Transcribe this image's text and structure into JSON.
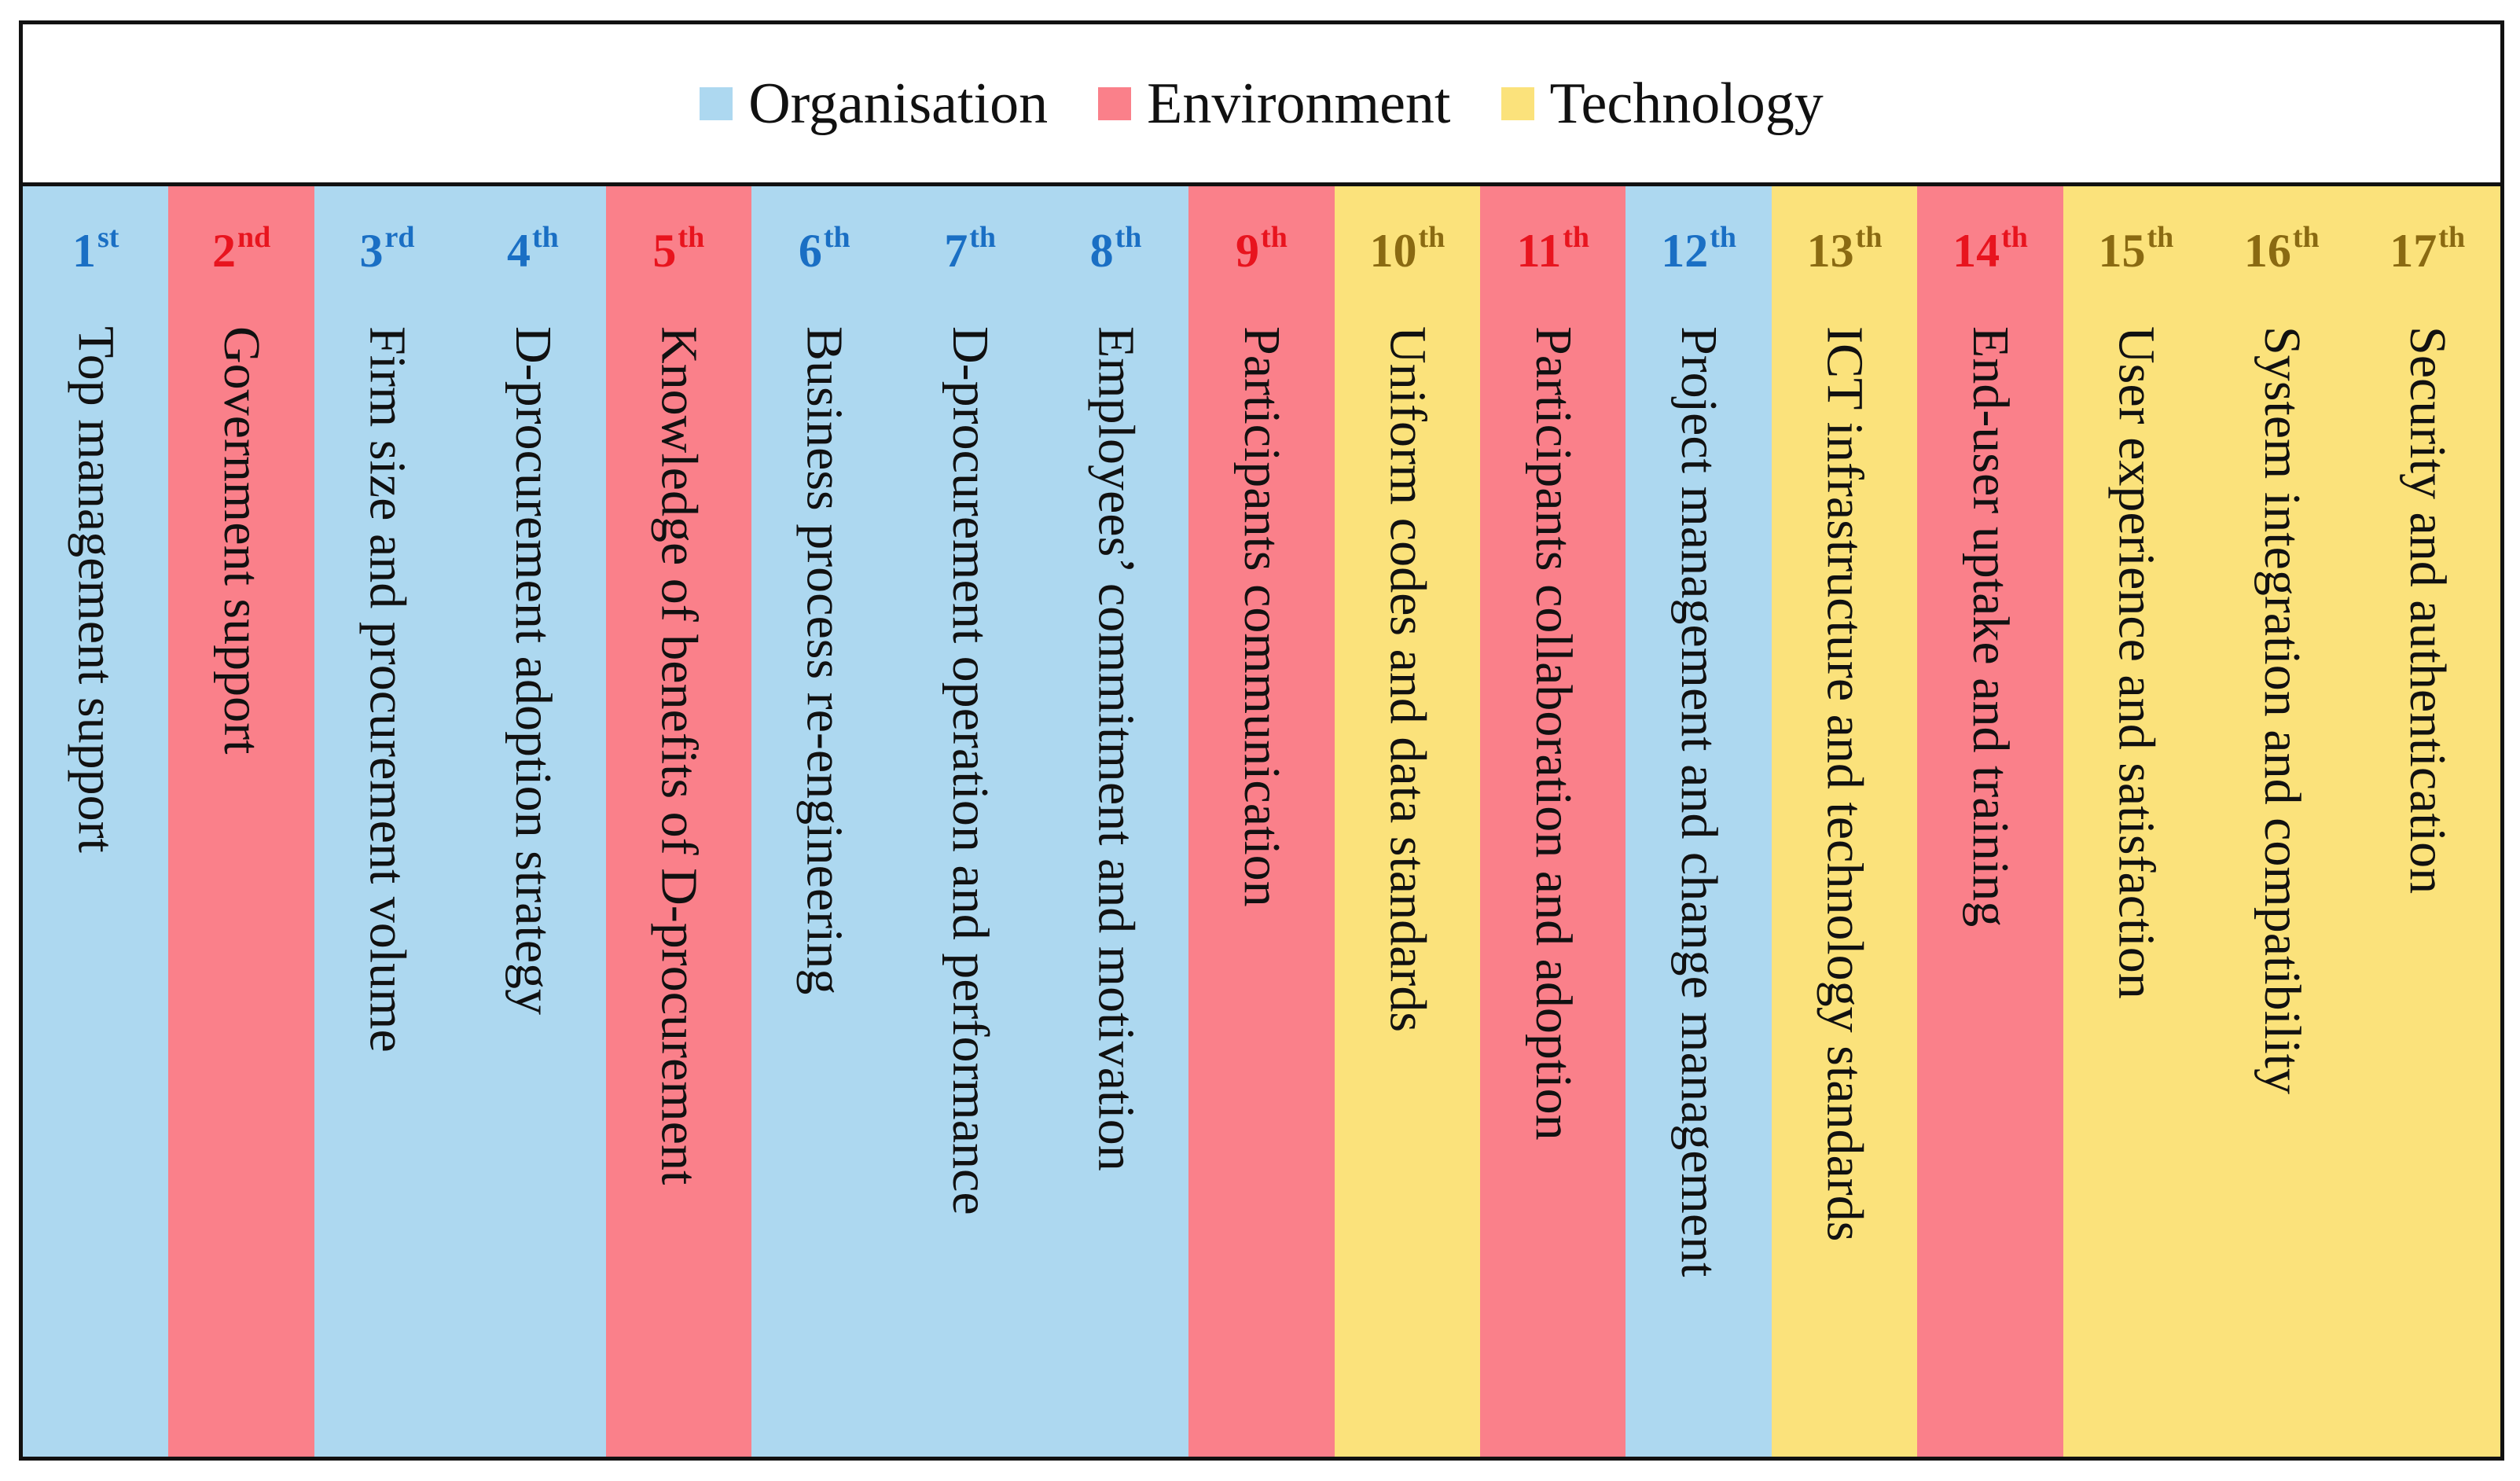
{
  "legend": [
    {
      "label": "Organisation",
      "color": "#ADD8F0"
    },
    {
      "label": "Environment",
      "color": "#FA808A"
    },
    {
      "label": "Technology",
      "color": "#FBE27B"
    }
  ],
  "category_colors": {
    "Organisation": {
      "fill": "#ADD8F0",
      "rank_color": "#1A6FC4"
    },
    "Environment": {
      "fill": "#FA808A",
      "rank_color": "#E8141E"
    },
    "Technology": {
      "fill": "#FBE27B",
      "rank_color": "#8A6A12"
    }
  },
  "factors": [
    {
      "rank": "1",
      "suffix": "st",
      "label": "Top management support",
      "category": "Organisation"
    },
    {
      "rank": "2",
      "suffix": "nd",
      "label": "Government support",
      "category": "Environment"
    },
    {
      "rank": "3",
      "suffix": "rd",
      "label": "Firm size and procurement volume",
      "category": "Organisation"
    },
    {
      "rank": "4",
      "suffix": "th",
      "label": "D-procurement adoption strategy",
      "category": "Organisation"
    },
    {
      "rank": "5",
      "suffix": "th",
      "label": "Knowledge of benefits of D-procurement",
      "category": "Environment"
    },
    {
      "rank": "6",
      "suffix": "th",
      "label": "Business process re-engineering",
      "category": "Organisation"
    },
    {
      "rank": "7",
      "suffix": "th",
      "label": "D-procurement operation and performance",
      "category": "Organisation"
    },
    {
      "rank": "8",
      "suffix": "th",
      "label": "Employees’ commitment and motivation",
      "category": "Organisation"
    },
    {
      "rank": "9",
      "suffix": "th",
      "label": "Participants communication",
      "category": "Environment"
    },
    {
      "rank": "10",
      "suffix": "th",
      "label": "Uniform codes and data standards",
      "category": "Technology"
    },
    {
      "rank": "11",
      "suffix": "th",
      "label": "Participants collaboration and adoption",
      "category": "Environment"
    },
    {
      "rank": "12",
      "suffix": "th",
      "label": "Project management and change management",
      "category": "Organisation"
    },
    {
      "rank": "13",
      "suffix": "th",
      "label": "ICT infrastructure and technology standards",
      "category": "Technology"
    },
    {
      "rank": "14",
      "suffix": "th",
      "label": "End-user uptake and training",
      "category": "Environment"
    },
    {
      "rank": "15",
      "suffix": "th",
      "label": "User experience and satisfaction",
      "category": "Technology"
    },
    {
      "rank": "16",
      "suffix": "th",
      "label": "System integration and compatibility",
      "category": "Technology"
    },
    {
      "rank": "17",
      "suffix": "th",
      "label": "Security and authentication",
      "category": "Technology"
    }
  ]
}
